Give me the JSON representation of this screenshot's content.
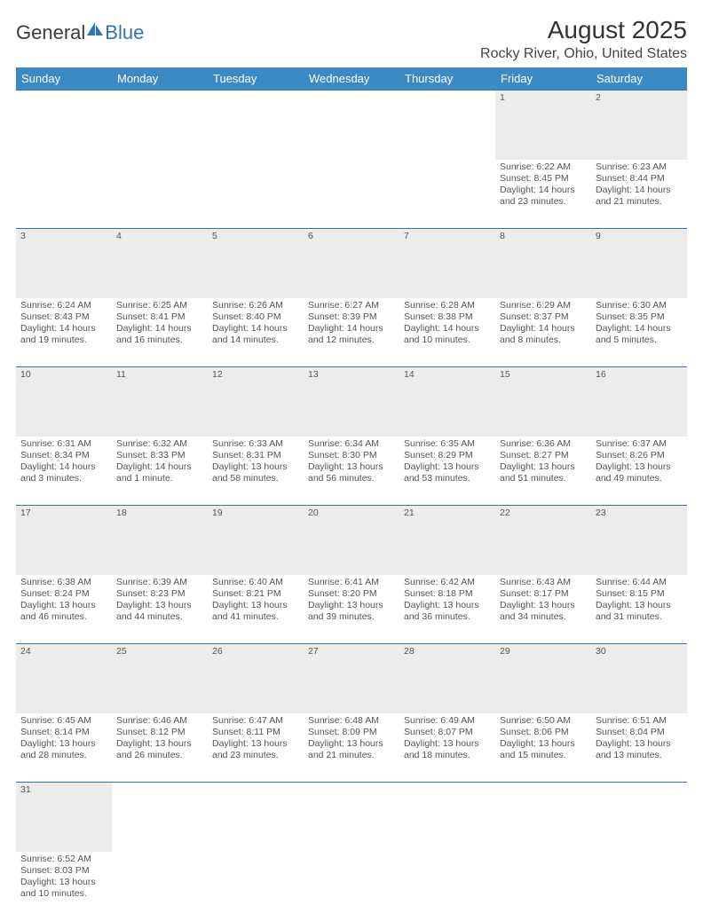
{
  "logo": {
    "part1": "Genera",
    "part2": "l",
    "part3": "Blue"
  },
  "title": "August 2025",
  "location": "Rocky River, Ohio, United States",
  "colors": {
    "header_bg": "#3b8ac4",
    "header_text": "#ffffff",
    "daynum_bg": "#ececec",
    "daynum_border": "#2e75b6",
    "body_text": "#555555",
    "logo_blue": "#2e75b6"
  },
  "weekdays": [
    "Sunday",
    "Monday",
    "Tuesday",
    "Wednesday",
    "Thursday",
    "Friday",
    "Saturday"
  ],
  "weeks": [
    {
      "nums": [
        "",
        "",
        "",
        "",
        "",
        "1",
        "2"
      ],
      "cells": [
        null,
        null,
        null,
        null,
        null,
        {
          "sr": "Sunrise: 6:22 AM",
          "ss": "Sunset: 8:45 PM",
          "d1": "Daylight: 14 hours",
          "d2": "and 23 minutes."
        },
        {
          "sr": "Sunrise: 6:23 AM",
          "ss": "Sunset: 8:44 PM",
          "d1": "Daylight: 14 hours",
          "d2": "and 21 minutes."
        }
      ]
    },
    {
      "nums": [
        "3",
        "4",
        "5",
        "6",
        "7",
        "8",
        "9"
      ],
      "cells": [
        {
          "sr": "Sunrise: 6:24 AM",
          "ss": "Sunset: 8:43 PM",
          "d1": "Daylight: 14 hours",
          "d2": "and 19 minutes."
        },
        {
          "sr": "Sunrise: 6:25 AM",
          "ss": "Sunset: 8:41 PM",
          "d1": "Daylight: 14 hours",
          "d2": "and 16 minutes."
        },
        {
          "sr": "Sunrise: 6:26 AM",
          "ss": "Sunset: 8:40 PM",
          "d1": "Daylight: 14 hours",
          "d2": "and 14 minutes."
        },
        {
          "sr": "Sunrise: 6:27 AM",
          "ss": "Sunset: 8:39 PM",
          "d1": "Daylight: 14 hours",
          "d2": "and 12 minutes."
        },
        {
          "sr": "Sunrise: 6:28 AM",
          "ss": "Sunset: 8:38 PM",
          "d1": "Daylight: 14 hours",
          "d2": "and 10 minutes."
        },
        {
          "sr": "Sunrise: 6:29 AM",
          "ss": "Sunset: 8:37 PM",
          "d1": "Daylight: 14 hours",
          "d2": "and 8 minutes."
        },
        {
          "sr": "Sunrise: 6:30 AM",
          "ss": "Sunset: 8:35 PM",
          "d1": "Daylight: 14 hours",
          "d2": "and 5 minutes."
        }
      ]
    },
    {
      "nums": [
        "10",
        "11",
        "12",
        "13",
        "14",
        "15",
        "16"
      ],
      "cells": [
        {
          "sr": "Sunrise: 6:31 AM",
          "ss": "Sunset: 8:34 PM",
          "d1": "Daylight: 14 hours",
          "d2": "and 3 minutes."
        },
        {
          "sr": "Sunrise: 6:32 AM",
          "ss": "Sunset: 8:33 PM",
          "d1": "Daylight: 14 hours",
          "d2": "and 1 minute."
        },
        {
          "sr": "Sunrise: 6:33 AM",
          "ss": "Sunset: 8:31 PM",
          "d1": "Daylight: 13 hours",
          "d2": "and 58 minutes."
        },
        {
          "sr": "Sunrise: 6:34 AM",
          "ss": "Sunset: 8:30 PM",
          "d1": "Daylight: 13 hours",
          "d2": "and 56 minutes."
        },
        {
          "sr": "Sunrise: 6:35 AM",
          "ss": "Sunset: 8:29 PM",
          "d1": "Daylight: 13 hours",
          "d2": "and 53 minutes."
        },
        {
          "sr": "Sunrise: 6:36 AM",
          "ss": "Sunset: 8:27 PM",
          "d1": "Daylight: 13 hours",
          "d2": "and 51 minutes."
        },
        {
          "sr": "Sunrise: 6:37 AM",
          "ss": "Sunset: 8:26 PM",
          "d1": "Daylight: 13 hours",
          "d2": "and 49 minutes."
        }
      ]
    },
    {
      "nums": [
        "17",
        "18",
        "19",
        "20",
        "21",
        "22",
        "23"
      ],
      "cells": [
        {
          "sr": "Sunrise: 6:38 AM",
          "ss": "Sunset: 8:24 PM",
          "d1": "Daylight: 13 hours",
          "d2": "and 46 minutes."
        },
        {
          "sr": "Sunrise: 6:39 AM",
          "ss": "Sunset: 8:23 PM",
          "d1": "Daylight: 13 hours",
          "d2": "and 44 minutes."
        },
        {
          "sr": "Sunrise: 6:40 AM",
          "ss": "Sunset: 8:21 PM",
          "d1": "Daylight: 13 hours",
          "d2": "and 41 minutes."
        },
        {
          "sr": "Sunrise: 6:41 AM",
          "ss": "Sunset: 8:20 PM",
          "d1": "Daylight: 13 hours",
          "d2": "and 39 minutes."
        },
        {
          "sr": "Sunrise: 6:42 AM",
          "ss": "Sunset: 8:18 PM",
          "d1": "Daylight: 13 hours",
          "d2": "and 36 minutes."
        },
        {
          "sr": "Sunrise: 6:43 AM",
          "ss": "Sunset: 8:17 PM",
          "d1": "Daylight: 13 hours",
          "d2": "and 34 minutes."
        },
        {
          "sr": "Sunrise: 6:44 AM",
          "ss": "Sunset: 8:15 PM",
          "d1": "Daylight: 13 hours",
          "d2": "and 31 minutes."
        }
      ]
    },
    {
      "nums": [
        "24",
        "25",
        "26",
        "27",
        "28",
        "29",
        "30"
      ],
      "cells": [
        {
          "sr": "Sunrise: 6:45 AM",
          "ss": "Sunset: 8:14 PM",
          "d1": "Daylight: 13 hours",
          "d2": "and 28 minutes."
        },
        {
          "sr": "Sunrise: 6:46 AM",
          "ss": "Sunset: 8:12 PM",
          "d1": "Daylight: 13 hours",
          "d2": "and 26 minutes."
        },
        {
          "sr": "Sunrise: 6:47 AM",
          "ss": "Sunset: 8:11 PM",
          "d1": "Daylight: 13 hours",
          "d2": "and 23 minutes."
        },
        {
          "sr": "Sunrise: 6:48 AM",
          "ss": "Sunset: 8:09 PM",
          "d1": "Daylight: 13 hours",
          "d2": "and 21 minutes."
        },
        {
          "sr": "Sunrise: 6:49 AM",
          "ss": "Sunset: 8:07 PM",
          "d1": "Daylight: 13 hours",
          "d2": "and 18 minutes."
        },
        {
          "sr": "Sunrise: 6:50 AM",
          "ss": "Sunset: 8:06 PM",
          "d1": "Daylight: 13 hours",
          "d2": "and 15 minutes."
        },
        {
          "sr": "Sunrise: 6:51 AM",
          "ss": "Sunset: 8:04 PM",
          "d1": "Daylight: 13 hours",
          "d2": "and 13 minutes."
        }
      ]
    },
    {
      "nums": [
        "31",
        "",
        "",
        "",
        "",
        "",
        ""
      ],
      "cells": [
        {
          "sr": "Sunrise: 6:52 AM",
          "ss": "Sunset: 8:03 PM",
          "d1": "Daylight: 13 hours",
          "d2": "and 10 minutes."
        },
        null,
        null,
        null,
        null,
        null,
        null
      ]
    }
  ]
}
